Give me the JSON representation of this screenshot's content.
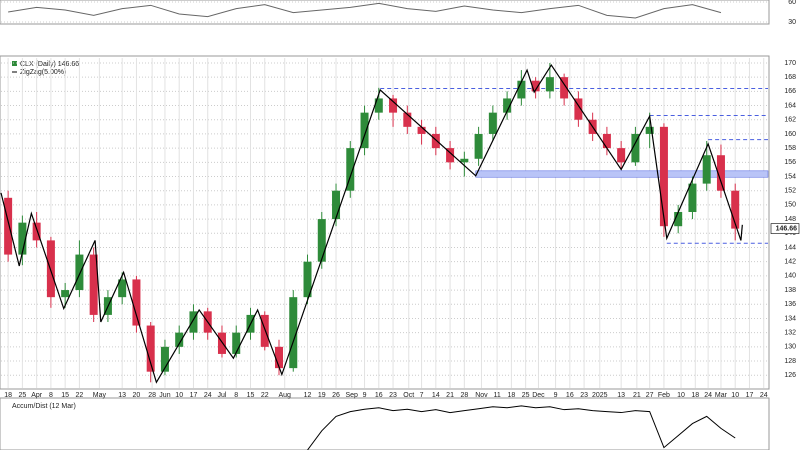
{
  "chart_data": [
    {
      "type": "line",
      "xlim": [
        -0.5,
        53.3
      ],
      "ylim": [
        27,
        63
      ],
      "yticks": [
        30,
        60
      ],
      "color": "#666",
      "x": [
        0,
        2,
        4,
        6,
        8,
        10,
        12,
        14,
        16,
        18,
        20,
        22,
        24,
        26,
        28,
        30,
        32,
        34,
        36,
        38,
        40,
        42,
        44,
        46,
        48,
        50
      ],
      "values": [
        45,
        52,
        48,
        40,
        50,
        55,
        42,
        38,
        50,
        56,
        44,
        48,
        52,
        58,
        50,
        46,
        54,
        48,
        44,
        50,
        55,
        40,
        36,
        50,
        56,
        44
      ]
    },
    {
      "type": "candlestick",
      "title": "CLX (Daily) 146.66",
      "xlim": [
        -0.5,
        53.3
      ],
      "ylim": [
        124.2,
        170.7
      ],
      "yticks": [
        126,
        128,
        130,
        132,
        134,
        136,
        138,
        140,
        142,
        144,
        146,
        148,
        150,
        152,
        154,
        156,
        158,
        160,
        162,
        164,
        166,
        168,
        170
      ],
      "xticks": [
        {
          "value": 0,
          "label": "18"
        },
        {
          "value": 1,
          "label": "25"
        },
        {
          "value": 2,
          "label": "Apr"
        },
        {
          "value": 3,
          "label": "8"
        },
        {
          "value": 4,
          "label": "15"
        },
        {
          "value": 5,
          "label": "22"
        },
        {
          "value": 6.4,
          "label": "May"
        },
        {
          "value": 8,
          "label": "13"
        },
        {
          "value": 9,
          "label": "20"
        },
        {
          "value": 10.1,
          "label": "28"
        },
        {
          "value": 11,
          "label": "Jun"
        },
        {
          "value": 12,
          "label": "10"
        },
        {
          "value": 13,
          "label": "17"
        },
        {
          "value": 14,
          "label": "24"
        },
        {
          "value": 15,
          "label": "Jul"
        },
        {
          "value": 16,
          "label": "8"
        },
        {
          "value": 17,
          "label": "15"
        },
        {
          "value": 18,
          "label": "22"
        },
        {
          "value": 19.4,
          "label": "Aug"
        },
        {
          "value": 21,
          "label": "12"
        },
        {
          "value": 22,
          "label": "19"
        },
        {
          "value": 23,
          "label": "26"
        },
        {
          "value": 24.1,
          "label": "Sep"
        },
        {
          "value": 25,
          "label": "9"
        },
        {
          "value": 26,
          "label": "16"
        },
        {
          "value": 27,
          "label": "23"
        },
        {
          "value": 28.1,
          "label": "Oct"
        },
        {
          "value": 29,
          "label": "7"
        },
        {
          "value": 30,
          "label": "14"
        },
        {
          "value": 31,
          "label": "21"
        },
        {
          "value": 32,
          "label": "28"
        },
        {
          "value": 33.2,
          "label": "Nov"
        },
        {
          "value": 34.3,
          "label": "11"
        },
        {
          "value": 35.3,
          "label": "18"
        },
        {
          "value": 36.3,
          "label": "25"
        },
        {
          "value": 37.2,
          "label": "Dec"
        },
        {
          "value": 38.4,
          "label": "9"
        },
        {
          "value": 39.4,
          "label": "16"
        },
        {
          "value": 40.4,
          "label": "23"
        },
        {
          "value": 41.5,
          "label": "2025"
        },
        {
          "value": 43,
          "label": "13"
        },
        {
          "value": 44.1,
          "label": "21"
        },
        {
          "value": 45,
          "label": "27"
        },
        {
          "value": 46,
          "label": "Feb"
        },
        {
          "value": 47.2,
          "label": "10"
        },
        {
          "value": 48.2,
          "label": "18"
        },
        {
          "value": 49.1,
          "label": "24"
        },
        {
          "value": 50,
          "label": "Mar"
        },
        {
          "value": 51,
          "label": "10"
        },
        {
          "value": 52,
          "label": "17"
        },
        {
          "value": 53,
          "label": "24"
        }
      ],
      "x": [
        0,
        1,
        2,
        3,
        4,
        5,
        6,
        7,
        8,
        9,
        10,
        11,
        12,
        13,
        14,
        15,
        16,
        17,
        18,
        19,
        20,
        21,
        22,
        23,
        24,
        25,
        26,
        27,
        28,
        29,
        30,
        31,
        32,
        33,
        34,
        35,
        36,
        37,
        38,
        39,
        40,
        41,
        42,
        43,
        44,
        45,
        46,
        47,
        48,
        49,
        50,
        51
      ],
      "open": [
        151,
        143,
        147.5,
        145,
        137,
        138,
        143,
        134.5,
        137,
        139.5,
        133,
        126.5,
        130,
        132,
        135,
        132,
        129,
        132,
        134.5,
        130,
        127,
        137,
        142,
        148,
        152,
        158,
        163,
        165,
        163,
        161,
        160,
        158,
        156,
        156.5,
        160,
        163,
        165,
        167.5,
        166,
        168,
        165,
        162,
        160,
        158,
        156,
        160,
        161,
        147,
        149,
        153,
        157,
        152
      ],
      "high": [
        152,
        148.5,
        149,
        145.5,
        139,
        145,
        144,
        138,
        140.5,
        140,
        133.5,
        131,
        133,
        136,
        135.5,
        133,
        133,
        135.5,
        135,
        131,
        138,
        143,
        149,
        153,
        159,
        164,
        166.5,
        165.5,
        164,
        162,
        161,
        159,
        157.5,
        161,
        164,
        166,
        169,
        168,
        170,
        168.5,
        166,
        163,
        161,
        159,
        161,
        163,
        161.5,
        150,
        154,
        159,
        158.5,
        153
      ],
      "low": [
        142,
        141.5,
        144,
        135.5,
        135.5,
        137,
        133.5,
        133.5,
        136,
        132,
        125,
        126,
        129,
        131,
        131,
        128.5,
        128.5,
        131,
        129.5,
        126,
        126.5,
        136,
        141,
        147,
        151,
        157,
        162,
        161,
        160,
        158.5,
        157,
        155,
        154,
        155.5,
        159,
        162,
        164,
        165,
        165,
        164,
        161,
        159,
        157,
        155,
        155.5,
        158,
        145.5,
        146,
        148,
        152,
        151,
        145
      ],
      "close": [
        143,
        147.5,
        145,
        137,
        138,
        143,
        134.5,
        137,
        139.5,
        133,
        126.5,
        130,
        132,
        135,
        132,
        129,
        132,
        134.5,
        130,
        127,
        137,
        142,
        148,
        152,
        158,
        163,
        165,
        163,
        161,
        160,
        158,
        156,
        156.5,
        160,
        163,
        165,
        167.5,
        166,
        168,
        165,
        162,
        160,
        158,
        156,
        160,
        161,
        147,
        149,
        153,
        157,
        152,
        146.66
      ],
      "up_color": "#2e8b3a",
      "down_color": "#d8304c",
      "zigzag": {
        "name": "ZigZag(5.00%)",
        "color": "#000",
        "x": [
          -0.5,
          0.78,
          1.63,
          3.9,
          6.1,
          6.5,
          8.1,
          10.4,
          13.4,
          15.8,
          17.5,
          19.2,
          26.1,
          32.8,
          36.4,
          36.9,
          38.1,
          43.0,
          45.0,
          46.2,
          49.1,
          51.4,
          51.5
        ],
        "values": [
          151.7,
          141.4,
          148.8,
          135.4,
          145.0,
          133.5,
          140.5,
          125.0,
          135.2,
          128.4,
          135.2,
          126.1,
          166.2,
          154.1,
          169.0,
          165.9,
          169.7,
          155.0,
          162.5,
          145.3,
          158.6,
          145.0,
          147.2
        ]
      },
      "levels": [
        {
          "value": 166.4,
          "from": 26.1
        },
        {
          "value": 162.6,
          "from": 45.0
        },
        {
          "value": 159.2,
          "from": 49.1
        },
        {
          "value": 144.6,
          "from": 46.2
        }
      ],
      "level_color": "#4a5fe0",
      "band": {
        "low": 153.9,
        "high": 154.8,
        "from": 32.8,
        "color": "#b9c4f7"
      }
    },
    {
      "type": "line",
      "title": "Accum/Dist (12 Mar)",
      "xlim": [
        -0.5,
        53.3
      ],
      "ylim": [
        0,
        100
      ],
      "color": "#000",
      "x": [
        21,
        22,
        23,
        24,
        25,
        26,
        27,
        28,
        29,
        30,
        31,
        32,
        33,
        34,
        35,
        36,
        37,
        38,
        39,
        40,
        41,
        42,
        43,
        44,
        45,
        46,
        47,
        48,
        49,
        50,
        51
      ],
      "values": [
        0,
        40,
        70,
        80,
        85,
        88,
        82,
        85,
        80,
        84,
        78,
        82,
        86,
        90,
        88,
        92,
        88,
        90,
        84,
        86,
        82,
        80,
        78,
        82,
        80,
        5,
        30,
        55,
        70,
        45,
        25
      ]
    }
  ]
}
